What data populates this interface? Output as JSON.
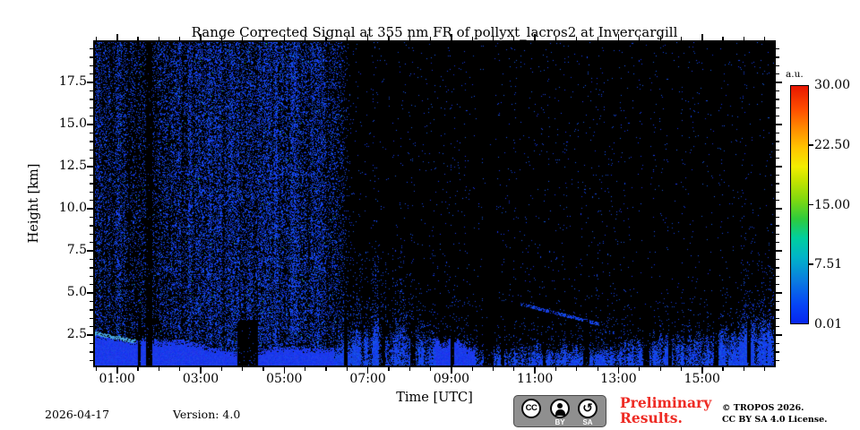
{
  "figure": {
    "title": "Range Corrected Signal at 355 nm FR of pollyxt_lacros2 at Invercargill",
    "xlabel": "Time [UTC]",
    "ylabel": "Height [km]",
    "date": "2026-04-17",
    "version": "Version: 4.0",
    "preliminary": "Preliminary Results.",
    "copyright_line1": "© TROPOS 2026.",
    "copyright_line2": "CC BY SA 4.0 License.",
    "colorbar_unit": "a.u.",
    "cc_badge": {
      "cc_text": "CC",
      "label_by": "BY",
      "label_sa": "SA",
      "sa_glyph": "↺"
    }
  },
  "colors": {
    "preliminary_red": "#ee2b24",
    "background_black": "#000000",
    "noise_blue": "#1d3cf0",
    "bl_solid_blue": "#1b3aeb",
    "bl_edge_cyan": "#3c96dc",
    "cyan_accent": "#14b9d2",
    "green_accent": "#2dc43e",
    "text_black": "#000000"
  },
  "chart_data": {
    "type": "heatmap",
    "title": "Range Corrected Signal at 355 nm FR of pollyxt_lacros2 at Invercargill",
    "xlabel": "Time [UTC]",
    "ylabel": "Height [km]",
    "x_range_utc_hours": [
      0.47,
      16.72
    ],
    "y_range_km": [
      0.7,
      19.9
    ],
    "value_range_au": [
      0.01,
      30.0
    ],
    "grid": false,
    "x_ticks": [
      {
        "t": 1,
        "label": "01:00"
      },
      {
        "t": 3,
        "label": "03:00"
      },
      {
        "t": 5,
        "label": "05:00"
      },
      {
        "t": 7,
        "label": "07:00"
      },
      {
        "t": 9,
        "label": "09:00"
      },
      {
        "t": 11,
        "label": "11:00"
      },
      {
        "t": 13,
        "label": "13:00"
      },
      {
        "t": 15,
        "label": "15:00"
      }
    ],
    "x_minor_step_hours": 0.5,
    "y_ticks": [
      {
        "h": 2.5,
        "label": "2.5"
      },
      {
        "h": 5.0,
        "label": "5.0"
      },
      {
        "h": 7.5,
        "label": "7.5"
      },
      {
        "h": 10.0,
        "label": "10.0"
      },
      {
        "h": 12.5,
        "label": "12.5"
      },
      {
        "h": 15.0,
        "label": "15.0"
      },
      {
        "h": 17.5,
        "label": "17.5"
      }
    ],
    "y_minor_step_km": 0.5,
    "colorbar": {
      "unit": "a.u.",
      "ticks": [
        {
          "value": 30.0,
          "label": "30.00"
        },
        {
          "value": 22.5,
          "label": "22.50"
        },
        {
          "value": 15.0,
          "label": "15.00"
        },
        {
          "value": 7.51,
          "label": "7.51"
        },
        {
          "value": 0.01,
          "label": "0.01"
        }
      ],
      "colormap_stops_bottom_to_top": [
        [
          0.0,
          "#0626f0"
        ],
        [
          0.08,
          "#0645f5"
        ],
        [
          0.18,
          "#0a7ce0"
        ],
        [
          0.28,
          "#00b4c8"
        ],
        [
          0.36,
          "#00cf9e"
        ],
        [
          0.44,
          "#2ecb3c"
        ],
        [
          0.52,
          "#7fd910"
        ],
        [
          0.6,
          "#c3e300"
        ],
        [
          0.66,
          "#f2ed00"
        ],
        [
          0.74,
          "#ffc400"
        ],
        [
          0.82,
          "#ff8c00"
        ],
        [
          0.9,
          "#ff4f00"
        ],
        [
          1.0,
          "#e81700"
        ]
      ]
    },
    "signal_description": "Blue speckled background noise over full height range during night (until ~06:00 UTC), mostly black with sparse blue dots afterwards; strong blue aerosol boundary layer near the surface all day with convective plumes and several vertical data gaps; thin descending aerosol layer ~4.3 to 3.2 km between ~10:40 and ~12:30 UTC.",
    "render": {
      "seed": 1337,
      "night_full_until": 5.9,
      "night_zero_at": 6.6,
      "night_base_density": 0.3,
      "night_density_eras": [
        [
          0.47,
          1.2,
          1.0
        ],
        [
          1.2,
          2.3,
          0.62
        ],
        [
          2.3,
          4.37,
          1.15
        ],
        [
          4.37,
          4.9,
          1.45
        ],
        [
          4.9,
          6.6,
          1.2
        ]
      ],
      "day_base_density": 0.012,
      "transition_amp": 0.13,
      "transition_scale_eras": [
        [
          6.3,
          8.6,
          1.7
        ],
        [
          8.6,
          15.85,
          0.85
        ],
        [
          15.85,
          16.72,
          1.6
        ]
      ],
      "right_edge_boost": {
        "t_start": 15.85,
        "amp": 0.05,
        "h_ref": 2.5,
        "h_scale": 2.2,
        "h_max": 9
      },
      "tall_plumes": {
        "t_start": 6.3,
        "t_end": 7.9,
        "threshold": 0.6,
        "amp": 0.1,
        "h_base": 2.5,
        "h_span": 6
      },
      "plume_amp_eras": [
        [
          0.47,
          6.3,
          0.12
        ],
        [
          6.3,
          8.6,
          0.8
        ],
        [
          8.6,
          12.9,
          0.5
        ],
        [
          12.9,
          16.72,
          0.85
        ]
      ],
      "solid_bl_spans": [
        [
          0.47,
          6.2
        ],
        [
          8.62,
          9.55
        ]
      ],
      "bl_top_km": [
        [
          0.47,
          2.75
        ],
        [
          1.0,
          2.45
        ],
        [
          1.5,
          2.2
        ],
        [
          2.0,
          2.15
        ],
        [
          2.5,
          2.25
        ],
        [
          3.0,
          1.95
        ],
        [
          3.5,
          1.65
        ],
        [
          3.9,
          1.45
        ],
        [
          4.35,
          1.3
        ],
        [
          4.6,
          1.75
        ],
        [
          5.0,
          1.8
        ],
        [
          5.5,
          1.7
        ],
        [
          6.0,
          1.65
        ],
        [
          6.4,
          2.0
        ],
        [
          6.8,
          2.6
        ],
        [
          7.2,
          3.3
        ],
        [
          7.5,
          2.9
        ],
        [
          7.8,
          3.4
        ],
        [
          8.1,
          2.7
        ],
        [
          8.5,
          2.2
        ],
        [
          9.0,
          2.1
        ],
        [
          9.5,
          1.9
        ],
        [
          10.0,
          1.6
        ],
        [
          10.5,
          1.7
        ],
        [
          11.0,
          1.9
        ],
        [
          11.5,
          1.7
        ],
        [
          12.0,
          1.8
        ],
        [
          12.5,
          1.6
        ],
        [
          13.0,
          1.9
        ],
        [
          13.3,
          2.4
        ],
        [
          13.6,
          2.1
        ],
        [
          14.0,
          2.5
        ],
        [
          14.3,
          2.2
        ],
        [
          14.7,
          2.6
        ],
        [
          15.0,
          2.3
        ],
        [
          15.4,
          2.8
        ],
        [
          15.8,
          2.6
        ],
        [
          16.2,
          3.2
        ],
        [
          16.72,
          3.6
        ]
      ],
      "gaps_full": [
        [
          1.7,
          0.14
        ],
        [
          9.78,
          0.22
        ],
        [
          13.58,
          0.16
        ],
        [
          14.18,
          0.1
        ],
        [
          15.28,
          0.12
        ]
      ],
      "gaps_bl": [
        [
          1.5,
          0.06
        ],
        [
          3.88,
          0.5
        ],
        [
          6.42,
          0.1
        ],
        [
          7.32,
          0.1
        ],
        [
          8.02,
          0.12
        ],
        [
          8.98,
          0.08
        ],
        [
          10.18,
          0.08
        ],
        [
          11.18,
          0.08
        ],
        [
          12.15,
          0.15
        ],
        [
          16.08,
          0.08
        ]
      ],
      "gap_floor": 0.07,
      "elevated_layer": {
        "t_start": 10.65,
        "h_start": 4.35,
        "t_end": 12.55,
        "h_end": 3.15,
        "thickness": 0.1,
        "density": 0.75
      },
      "special_dot_prob": 0.006
    }
  }
}
